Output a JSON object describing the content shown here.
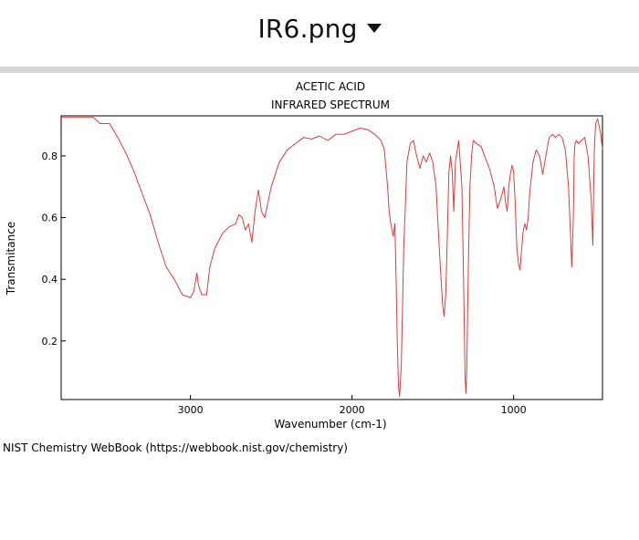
{
  "header": {
    "file_name": "IR6.png"
  },
  "footer": {
    "credit": "NIST Chemistry WebBook (https://webbook.nist.gov/chemistry)"
  },
  "colors": {
    "spectrum_line": "#e8393b",
    "separator": "#d6d6d6"
  },
  "chart_data": {
    "type": "line",
    "title": "ACETIC ACID",
    "subtitle": "INFRARED SPECTRUM",
    "xlabel": "Wavenumber (cm-1)",
    "ylabel": "Transmitance",
    "xlim": [
      3800,
      450
    ],
    "ylim": [
      0.01,
      0.93
    ],
    "xticks": [
      3000,
      2000,
      1000
    ],
    "xtick_labels": [
      "3000",
      "2000",
      "1000"
    ],
    "yticks": [
      0.2,
      0.4,
      0.6,
      0.8
    ],
    "ytick_labels": [
      "0.2",
      "0.4",
      "0.6",
      "0.8"
    ],
    "series": [
      {
        "name": "Acetic acid IR spectrum",
        "x": [
          3800,
          3700,
          3600,
          3560,
          3500,
          3450,
          3400,
          3350,
          3300,
          3250,
          3200,
          3150,
          3100,
          3080,
          3050,
          3000,
          2980,
          2960,
          2950,
          2930,
          2900,
          2880,
          2850,
          2800,
          2760,
          2720,
          2700,
          2680,
          2660,
          2640,
          2620,
          2600,
          2580,
          2560,
          2540,
          2500,
          2450,
          2400,
          2350,
          2300,
          2250,
          2200,
          2150,
          2100,
          2050,
          2000,
          1950,
          1900,
          1860,
          1820,
          1800,
          1780,
          1770,
          1760,
          1745,
          1735,
          1728,
          1720,
          1712,
          1705,
          1695,
          1680,
          1660,
          1640,
          1620,
          1600,
          1580,
          1560,
          1540,
          1520,
          1500,
          1480,
          1460,
          1440,
          1430,
          1420,
          1410,
          1400,
          1390,
          1380,
          1370,
          1360,
          1340,
          1320,
          1310,
          1300,
          1295,
          1290,
          1280,
          1270,
          1260,
          1250,
          1230,
          1200,
          1180,
          1150,
          1120,
          1100,
          1080,
          1060,
          1050,
          1040,
          1030,
          1020,
          1010,
          1000,
          990,
          980,
          970,
          960,
          950,
          940,
          930,
          920,
          910,
          900,
          880,
          860,
          840,
          820,
          800,
          780,
          760,
          740,
          720,
          700,
          680,
          660,
          640,
          630,
          625,
          620,
          610,
          600,
          580,
          560,
          540,
          520,
          510,
          505,
          500,
          495,
          490,
          480,
          460,
          450
        ],
        "values": [
          0.925,
          0.925,
          0.925,
          0.905,
          0.905,
          0.86,
          0.81,
          0.75,
          0.68,
          0.61,
          0.52,
          0.44,
          0.4,
          0.38,
          0.35,
          0.34,
          0.36,
          0.42,
          0.38,
          0.35,
          0.35,
          0.44,
          0.5,
          0.55,
          0.57,
          0.58,
          0.61,
          0.6,
          0.56,
          0.58,
          0.52,
          0.62,
          0.69,
          0.62,
          0.6,
          0.7,
          0.78,
          0.82,
          0.84,
          0.86,
          0.855,
          0.865,
          0.85,
          0.87,
          0.87,
          0.88,
          0.89,
          0.885,
          0.87,
          0.85,
          0.82,
          0.7,
          0.62,
          0.58,
          0.54,
          0.58,
          0.42,
          0.2,
          0.05,
          0.02,
          0.12,
          0.5,
          0.78,
          0.84,
          0.85,
          0.8,
          0.76,
          0.8,
          0.78,
          0.81,
          0.78,
          0.7,
          0.5,
          0.32,
          0.28,
          0.35,
          0.55,
          0.75,
          0.8,
          0.75,
          0.62,
          0.78,
          0.85,
          0.7,
          0.4,
          0.08,
          0.03,
          0.1,
          0.45,
          0.7,
          0.8,
          0.85,
          0.84,
          0.83,
          0.8,
          0.76,
          0.7,
          0.63,
          0.66,
          0.7,
          0.65,
          0.62,
          0.7,
          0.74,
          0.77,
          0.75,
          0.65,
          0.5,
          0.45,
          0.43,
          0.5,
          0.56,
          0.58,
          0.56,
          0.6,
          0.68,
          0.78,
          0.82,
          0.8,
          0.74,
          0.8,
          0.86,
          0.87,
          0.86,
          0.87,
          0.86,
          0.82,
          0.7,
          0.44,
          0.6,
          0.8,
          0.84,
          0.85,
          0.84,
          0.85,
          0.86,
          0.8,
          0.66,
          0.51,
          0.7,
          0.82,
          0.88,
          0.91,
          0.92,
          0.87,
          0.82
        ]
      }
    ]
  }
}
